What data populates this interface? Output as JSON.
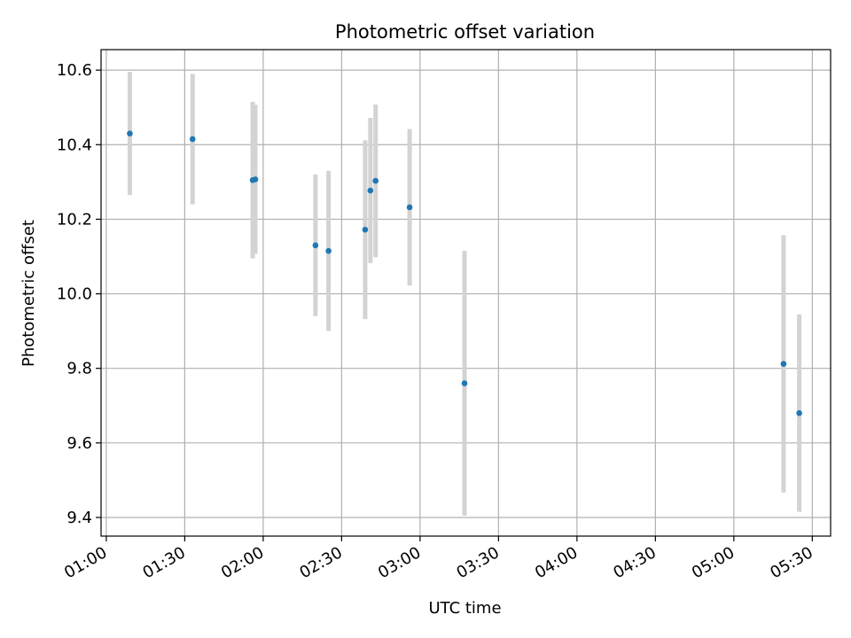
{
  "chart_data": {
    "type": "scatter",
    "title": "Photometric offset variation",
    "xlabel": "UTC time",
    "ylabel": "Photometric offset",
    "xlim": [
      "00:58",
      "05:37"
    ],
    "ylim": [
      9.35,
      10.655
    ],
    "grid": true,
    "x_ticks": [
      "01:00",
      "01:30",
      "02:00",
      "02:30",
      "03:00",
      "03:30",
      "04:00",
      "04:30",
      "05:00",
      "05:30"
    ],
    "y_ticks": [
      "9.4",
      "9.6",
      "9.8",
      "10.0",
      "10.2",
      "10.4",
      "10.6"
    ],
    "colors": {
      "points": "#1f77b4",
      "error_bars": "#d3d3d3",
      "grid": "#b0b0b0"
    },
    "series": [
      {
        "points": [
          {
            "x": "01:09",
            "y": 10.43,
            "yerr": 0.165
          },
          {
            "x": "01:33",
            "y": 10.415,
            "yerr": 0.175
          },
          {
            "x": "01:56",
            "y": 10.305,
            "yerr": 0.21
          },
          {
            "x": "01:57",
            "y": 10.307,
            "yerr": 0.2
          },
          {
            "x": "02:20",
            "y": 10.13,
            "yerr": 0.19
          },
          {
            "x": "02:25",
            "y": 10.115,
            "yerr": 0.215
          },
          {
            "x": "02:39",
            "y": 10.172,
            "yerr": 0.24
          },
          {
            "x": "02:41",
            "y": 10.277,
            "yerr": 0.195
          },
          {
            "x": "02:43",
            "y": 10.303,
            "yerr": 0.205
          },
          {
            "x": "02:56",
            "y": 10.232,
            "yerr": 0.21
          },
          {
            "x": "03:17",
            "y": 9.76,
            "yerr": 0.355
          },
          {
            "x": "05:19",
            "y": 9.812,
            "yerr": 0.345
          },
          {
            "x": "05:25",
            "y": 9.68,
            "yerr": 0.265
          }
        ]
      }
    ]
  }
}
